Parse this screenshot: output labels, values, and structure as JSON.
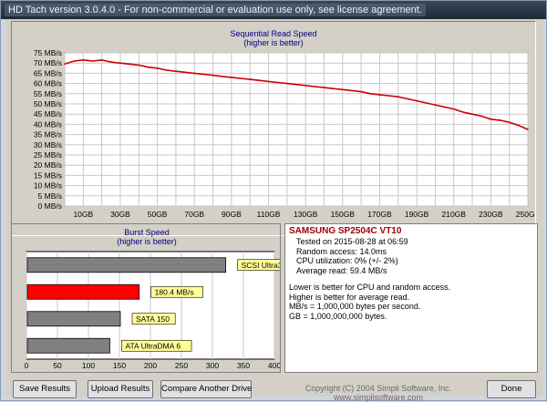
{
  "window": {
    "title": "HD Tach version 3.0.4.0  - For non-commercial or evaluation use only, see license agreement."
  },
  "read_chart": {
    "title": "Sequential Read Speed",
    "subtitle": "(higher is better)",
    "line_color": "#cc0000"
  },
  "burst_chart": {
    "title": "Burst Speed",
    "subtitle": "(higher is better)"
  },
  "drive_info": {
    "name": "SAMSUNG SP2504C VT10",
    "tested_on": "Tested on 2015-08-28 at 06:59",
    "random_access": "Random access: 14.0ms",
    "cpu_utilization": "CPU utilization: 0% (+/- 2%)",
    "average_read": "Average read: 59.4 MB/s",
    "note1": "Lower is better for CPU and random access.",
    "note2": "Higher is better for average read.",
    "note3": "MB/s = 1,000,000 bytes per second.",
    "note4": "GB = 1,000,000,000 bytes."
  },
  "buttons": {
    "save": "Save Results",
    "upload": "Upload Results",
    "compare": "Compare Another Drive",
    "done": "Done"
  },
  "footer": {
    "copyright": "Copyright (C) 2004 Simpli Software, Inc. www.simplisoftware.com"
  },
  "colors": {
    "accent_red": "#ff0000",
    "bar_gray": "#808080",
    "label_yellow": "#ffff99",
    "title_blue": "#000080"
  },
  "chart_data": [
    {
      "type": "line",
      "title": "Sequential Read Speed",
      "subtitle": "(higher is better)",
      "xlabel": "",
      "ylabel": "",
      "x_unit": "GB",
      "y_unit": "MB/s",
      "xlim": [
        0,
        250
      ],
      "ylim": [
        0,
        75
      ],
      "x_ticks": [
        "10GB",
        "30GB",
        "50GB",
        "70GB",
        "90GB",
        "110GB",
        "130GB",
        "150GB",
        "170GB",
        "190GB",
        "210GB",
        "230GB",
        "250GB"
      ],
      "y_ticks": [
        "0 MB/s",
        "5 MB/s",
        "10 MB/s",
        "15 MB/s",
        "20 MB/s",
        "25 MB/s",
        "30 MB/s",
        "35 MB/s",
        "40 MB/s",
        "45 MB/s",
        "50 MB/s",
        "55 MB/s",
        "60 MB/s",
        "65 MB/s",
        "70 MB/s",
        "75 MB/s"
      ],
      "grid": true,
      "series": [
        {
          "color": "#cc0000",
          "x": [
            0,
            5,
            10,
            15,
            20,
            25,
            30,
            35,
            40,
            45,
            50,
            55,
            60,
            65,
            70,
            75,
            80,
            85,
            90,
            95,
            100,
            105,
            110,
            115,
            120,
            125,
            130,
            135,
            140,
            145,
            150,
            155,
            160,
            165,
            170,
            175,
            180,
            185,
            190,
            195,
            200,
            205,
            210,
            215,
            220,
            225,
            230,
            235,
            240,
            245,
            250
          ],
          "y": [
            69.5,
            71,
            71.5,
            71,
            71.5,
            70.5,
            70,
            69.5,
            69,
            68,
            67.5,
            66.5,
            66,
            65.5,
            65,
            64.5,
            64,
            63.5,
            63,
            62.5,
            62,
            61.5,
            61,
            60.5,
            60,
            59.5,
            59,
            58.5,
            58,
            57.5,
            57,
            56.5,
            56,
            55,
            54.5,
            54,
            53.5,
            52.5,
            51.5,
            50.5,
            49.5,
            48.5,
            47.5,
            46,
            45,
            44,
            42.5,
            42,
            41,
            39.5,
            37.5
          ]
        }
      ]
    },
    {
      "type": "bar",
      "orientation": "horizontal",
      "title": "Burst Speed",
      "subtitle": "(higher is better)",
      "xlim": [
        0,
        400
      ],
      "x_ticks": [
        "0",
        "50",
        "100",
        "150",
        "200",
        "250",
        "300",
        "350",
        "400"
      ],
      "categories": [
        "SCSI Ultra320",
        "180.4 MB/s",
        "SATA 150",
        "ATA UltraDMA 6"
      ],
      "values": [
        320,
        180.4,
        150,
        133
      ],
      "colors": [
        "#808080",
        "#ff0000",
        "#808080",
        "#808080"
      ]
    }
  ]
}
